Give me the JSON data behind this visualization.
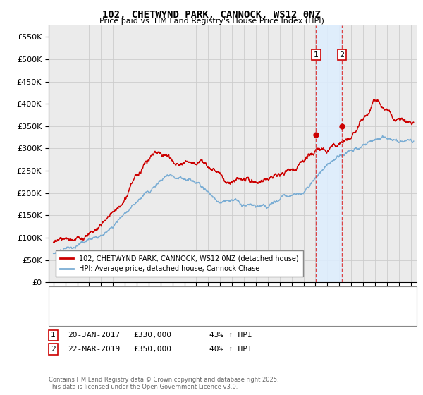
{
  "title": "102, CHETWYND PARK, CANNOCK, WS12 0NZ",
  "subtitle": "Price paid vs. HM Land Registry's House Price Index (HPI)",
  "ylim": [
    0,
    575000
  ],
  "yticks": [
    0,
    50000,
    100000,
    150000,
    200000,
    250000,
    300000,
    350000,
    400000,
    450000,
    500000,
    550000
  ],
  "xlim_start": 1994.6,
  "xlim_end": 2025.5,
  "grid_color": "#cccccc",
  "bg_color": "#ffffff",
  "plot_bg_color": "#ebebeb",
  "line1_color": "#cc0000",
  "line2_color": "#7aadd4",
  "vline1_x": 2017.05,
  "vline2_x": 2019.22,
  "vline_color": "#dd4444",
  "shade_color": "#ddeeff",
  "legend_line1": "102, CHETWYND PARK, CANNOCK, WS12 0NZ (detached house)",
  "legend_line2": "HPI: Average price, detached house, Cannock Chase",
  "annotation1_date": "20-JAN-2017",
  "annotation1_price": "£330,000",
  "annotation1_hpi": "43% ↑ HPI",
  "annotation2_date": "22-MAR-2019",
  "annotation2_price": "£350,000",
  "annotation2_hpi": "40% ↑ HPI",
  "footnote": "Contains HM Land Registry data © Crown copyright and database right 2025.\nThis data is licensed under the Open Government Licence v3.0.",
  "marker1_y": 330000,
  "marker2_y": 350000
}
